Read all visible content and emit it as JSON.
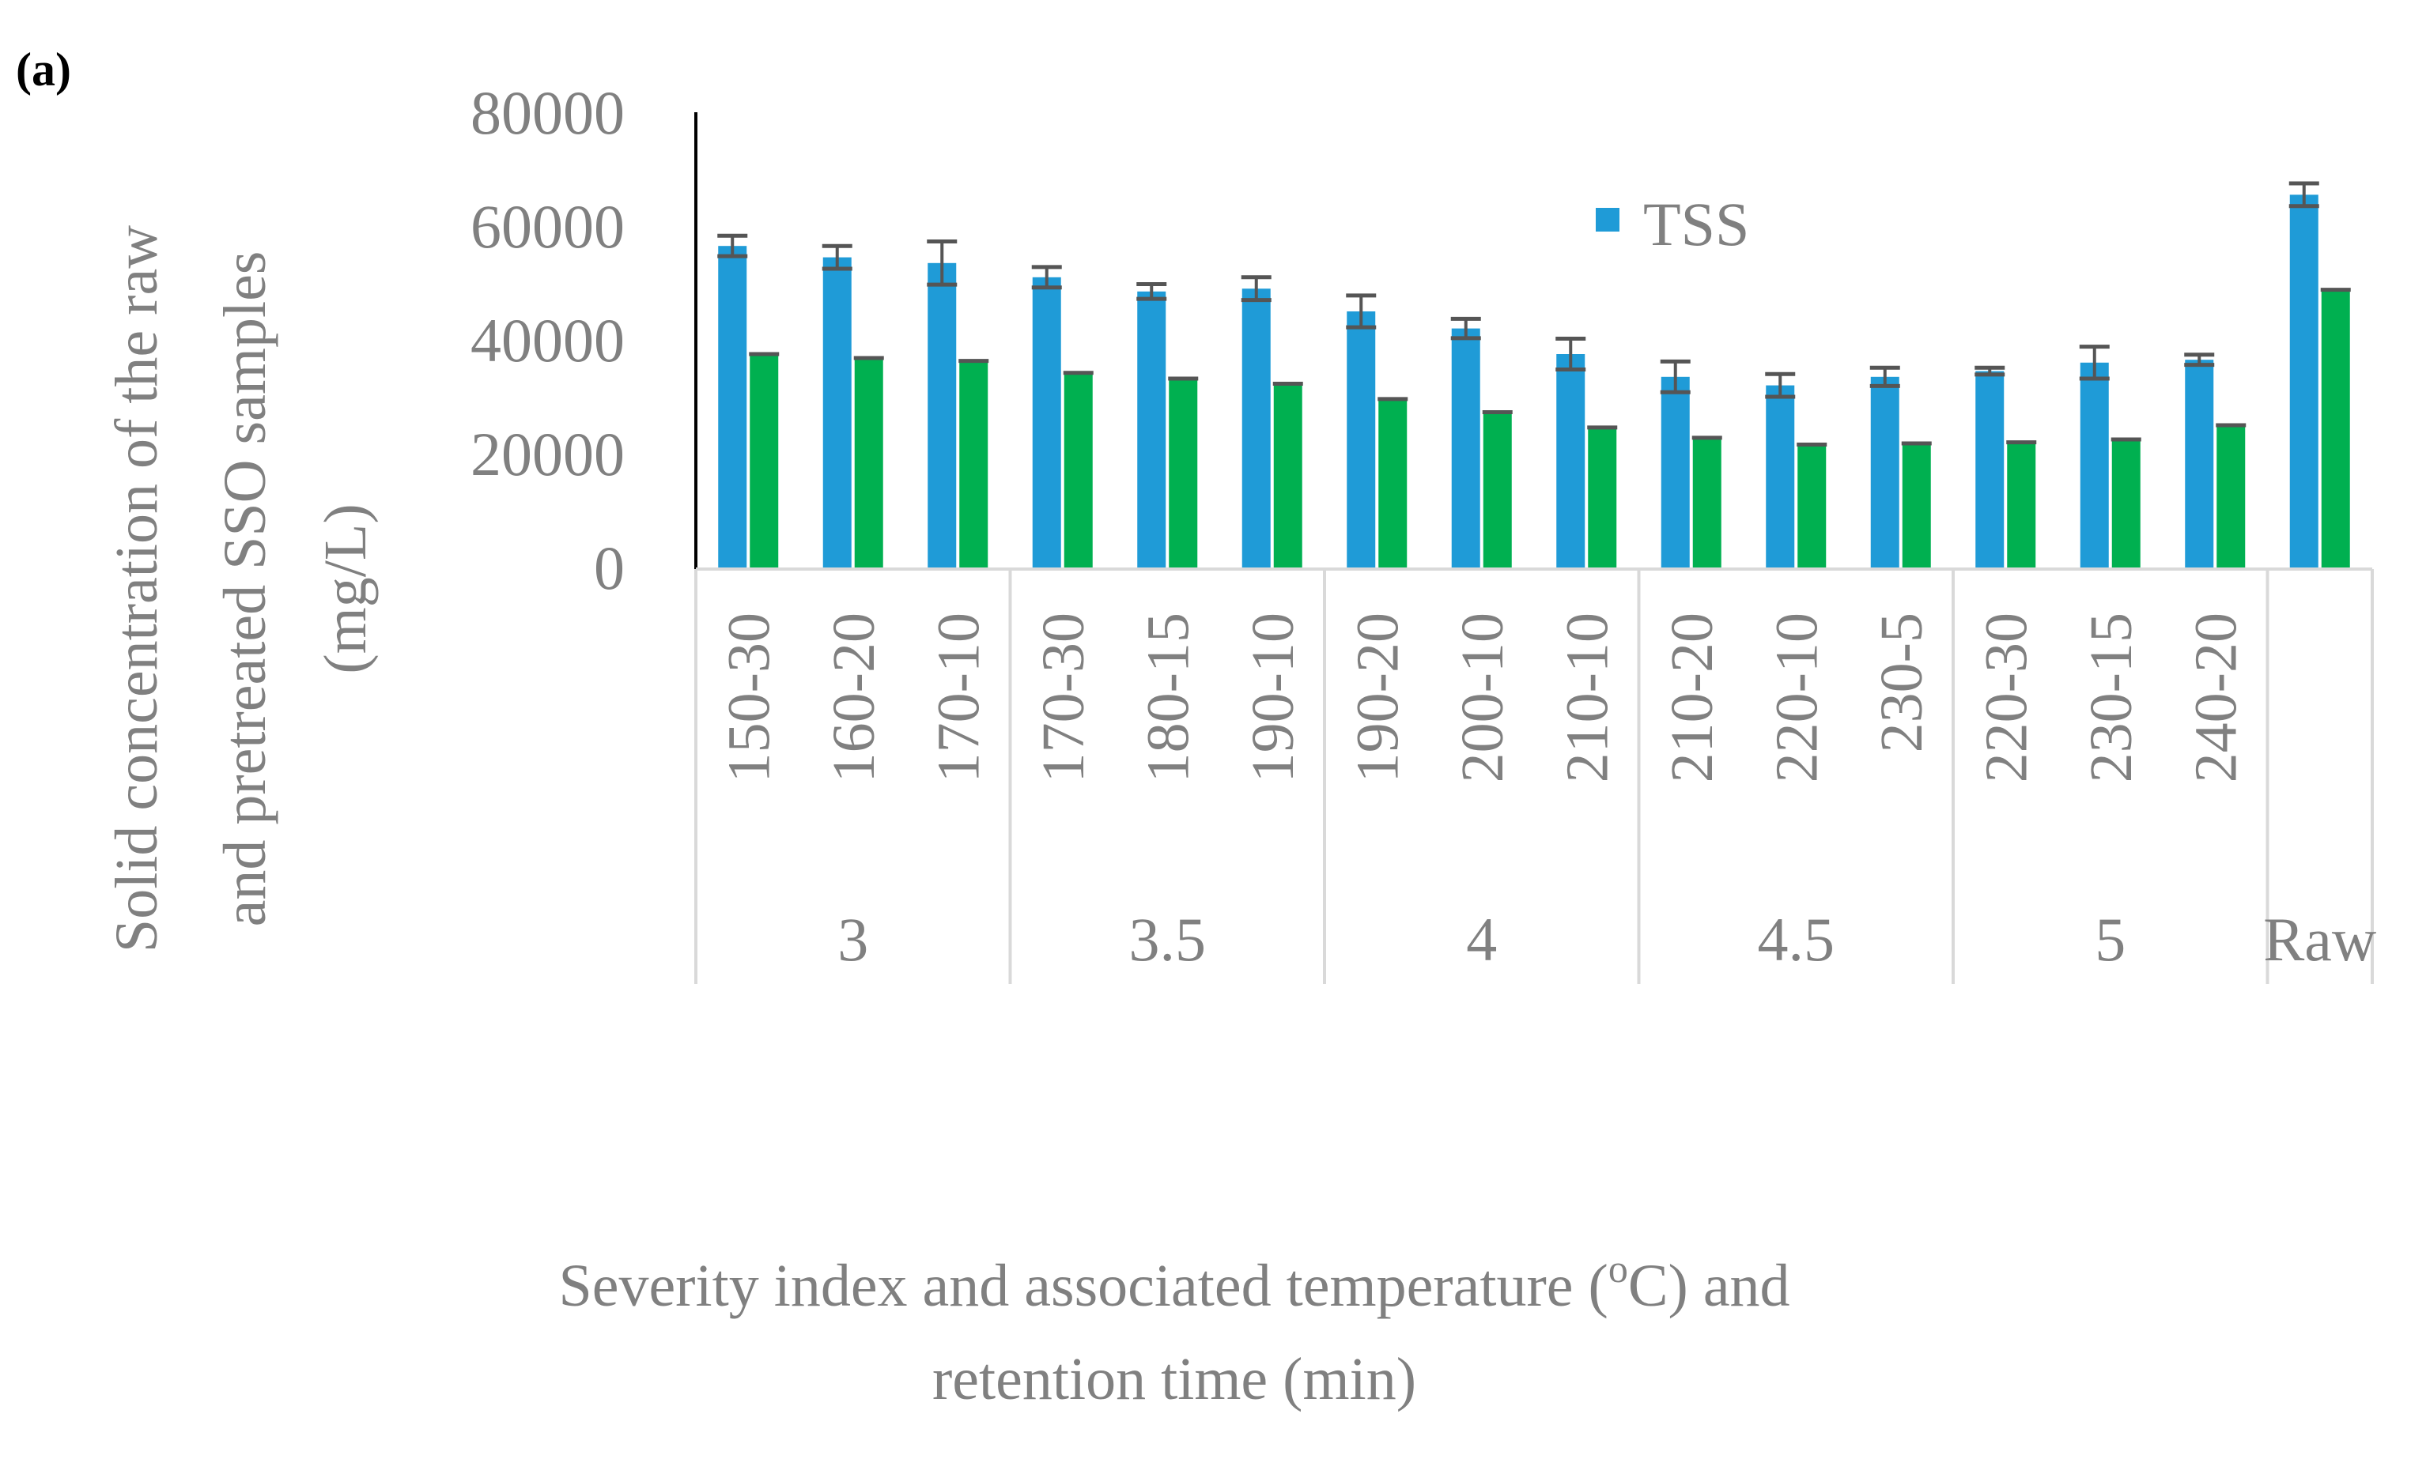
{
  "panel_label": "(a)",
  "chart_data": {
    "type": "bar",
    "categories": [
      "150-30",
      "160-20",
      "170-10",
      "170-30",
      "180-15",
      "190-10",
      "190-20",
      "200-10",
      "210-10",
      "210-20",
      "220-10",
      "230-5",
      "220-30",
      "230-15",
      "240-20",
      ""
    ],
    "groups": [
      {
        "label": "3",
        "count": 3
      },
      {
        "label": "3.5",
        "count": 3
      },
      {
        "label": "4",
        "count": 3
      },
      {
        "label": "4.5",
        "count": 3
      },
      {
        "label": "5",
        "count": 3
      },
      {
        "label": "Raw",
        "count": 1
      }
    ],
    "series": [
      {
        "name": "TSS",
        "color": "#1f9bd7",
        "values": [
          56500,
          54500,
          53500,
          51000,
          48500,
          49000,
          45000,
          42000,
          37500,
          33500,
          32000,
          33500,
          34500,
          36000,
          36500,
          65500
        ],
        "errors": [
          1800,
          2000,
          3800,
          1800,
          1300,
          2000,
          2800,
          1700,
          2700,
          2700,
          2000,
          1600,
          600,
          2800,
          900,
          2000
        ]
      },
      {
        "name": "",
        "color": "#00b050",
        "values": [
          37500,
          36800,
          36300,
          34200,
          33200,
          32300,
          29600,
          27300,
          24600,
          22800,
          21600,
          21800,
          22000,
          22500,
          25000,
          48800
        ],
        "errors": [
          0,
          0,
          0,
          0,
          0,
          0,
          0,
          0,
          0,
          0,
          0,
          0,
          0,
          0,
          0,
          0
        ]
      }
    ],
    "yticks": [
      "0",
      "20000",
      "40000",
      "60000",
      "80000"
    ],
    "ylim": [
      0,
      80000
    ],
    "ylabel": [
      "Solid concentration  of the raw",
      "and pretreated SSO samples",
      "(mg/L)"
    ],
    "xlabel_line1_before": "Severity index and associated temperature (",
    "xlabel_sup": "o",
    "xlabel_line1_after": "C) and",
    "xlabel_line2": "retention time (min)",
    "legend_placement": "top-right",
    "grid": false
  }
}
